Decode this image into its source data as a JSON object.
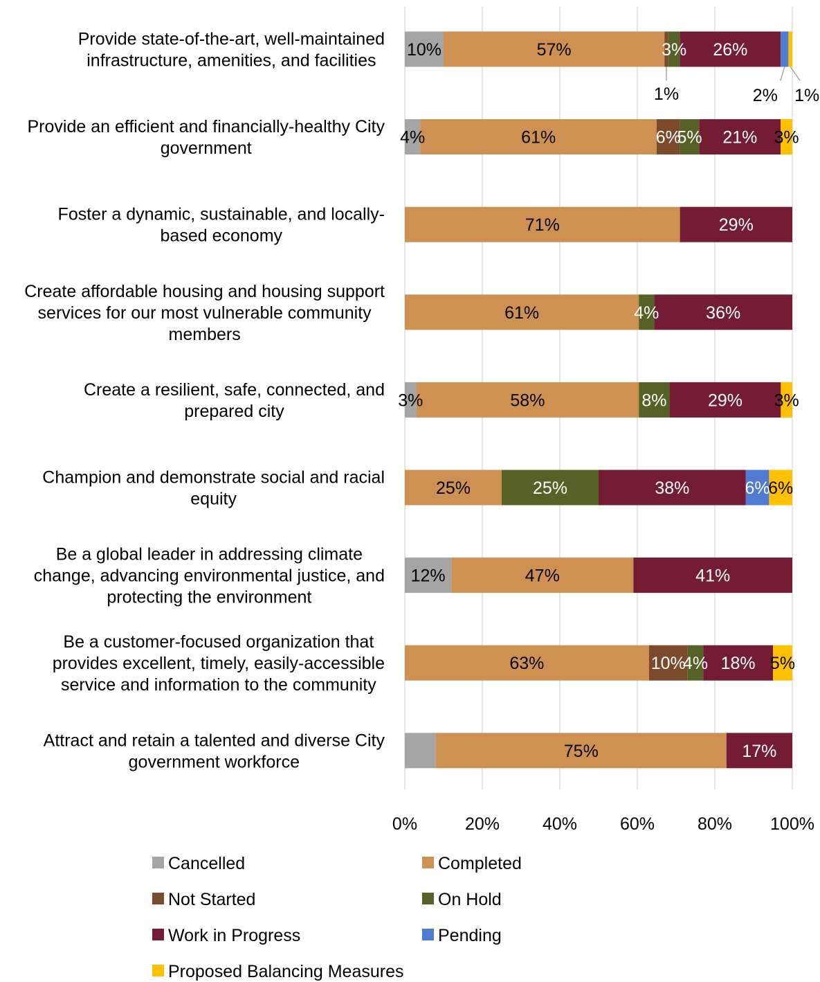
{
  "chart_data": {
    "type": "bar",
    "orientation": "horizontal",
    "stacked": "percent",
    "categories": [
      [
        "Provide state-of-the-art, well-maintained",
        "infrastructure, amenities, and facilities"
      ],
      [
        "Provide an efficient and financially-healthy City",
        "government"
      ],
      [
        "Foster a dynamic, sustainable, and locally-",
        "based economy"
      ],
      [
        "Create affordable housing and housing support",
        "services for our most vulnerable community",
        "members"
      ],
      [
        "Create a resilient, safe, connected, and",
        "prepared city"
      ],
      [
        "Champion and demonstrate social and racial",
        "equity"
      ],
      [
        "Be a global leader in addressing climate",
        "change, advancing environmental justice, and",
        "protecting the environment"
      ],
      [
        "Be a customer-focused organization that",
        "provides excellent, timely, easily-accessible",
        "service and information to the community"
      ],
      [
        "Attract and retain a talented and diverse City",
        "government workforce"
      ]
    ],
    "series": [
      {
        "name": "Cancelled",
        "color": "#A5A5A5",
        "label_color": "#000000",
        "values": [
          10,
          4,
          0,
          0,
          3,
          0,
          12,
          0,
          8
        ],
        "labels": [
          "10%",
          "4%",
          "",
          "",
          "3%",
          "",
          "12%",
          "",
          ""
        ]
      },
      {
        "name": "Completed",
        "color": "#CF9152",
        "label_color": "#000000",
        "values": [
          57,
          61,
          71,
          61,
          58,
          25,
          47,
          63,
          75
        ],
        "labels": [
          "57%",
          "61%",
          "71%",
          "61%",
          "58%",
          "25%",
          "47%",
          "63%",
          "75%"
        ]
      },
      {
        "name": "Not Started",
        "color": "#7B4A2B",
        "label_color": "#ffffff",
        "values": [
          1,
          6,
          0,
          0,
          0,
          0,
          0,
          10,
          0
        ],
        "labels": [
          "",
          "6%",
          "",
          "",
          "",
          "",
          "",
          "10%",
          ""
        ]
      },
      {
        "name": "On Hold",
        "color": "#556126",
        "label_color": "#ffffff",
        "values": [
          3,
          5,
          0,
          4,
          8,
          25,
          0,
          4,
          0
        ],
        "labels": [
          "3%",
          "5%",
          "",
          "4%",
          "8%",
          "25%",
          "",
          "4%",
          ""
        ]
      },
      {
        "name": "Work in Progress",
        "color": "#731C34",
        "label_color": "#ffffff",
        "values": [
          26,
          21,
          29,
          36,
          29,
          38,
          41,
          18,
          17
        ],
        "labels": [
          "26%",
          "21%",
          "29%",
          "36%",
          "29%",
          "38%",
          "41%",
          "18%",
          "17%"
        ]
      },
      {
        "name": "Pending",
        "color": "#4F7BD3",
        "label_color": "#ffffff",
        "values": [
          2,
          0,
          0,
          0,
          0,
          6,
          0,
          0,
          0
        ],
        "labels": [
          "",
          "",
          "",
          "",
          "",
          "6%",
          "",
          "",
          ""
        ]
      },
      {
        "name": "Proposed Balancing Measures",
        "color": "#FFC000",
        "label_color": "#000000",
        "values": [
          1,
          3,
          0,
          0,
          3,
          6,
          0,
          5,
          0
        ],
        "labels": [
          "",
          "3%",
          "",
          "",
          "3%",
          "6%",
          "",
          "5%",
          ""
        ]
      }
    ],
    "callouts": [
      {
        "category": 0,
        "series": "Not Started",
        "label": "1%"
      },
      {
        "category": 0,
        "series": "Pending",
        "label": "2%"
      },
      {
        "category": 0,
        "series": "Proposed Balancing Measures",
        "label": "1%"
      }
    ],
    "xlim": [
      0,
      100
    ],
    "xticks": [
      "0%",
      "20%",
      "40%",
      "60%",
      "80%",
      "100%"
    ],
    "grid": true,
    "legend": "bottom",
    "title": "",
    "xlabel": "",
    "ylabel": ""
  }
}
